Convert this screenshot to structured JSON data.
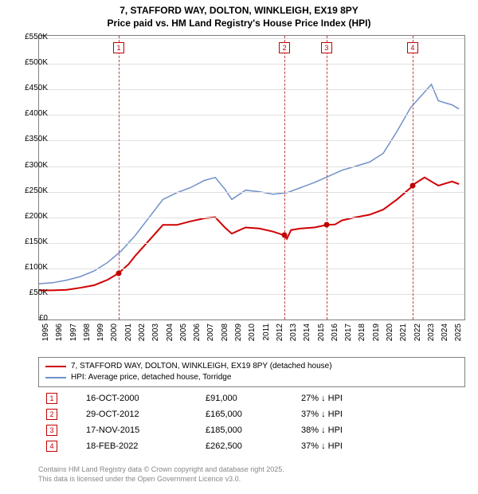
{
  "title_line1": "7, STAFFORD WAY, DOLTON, WINKLEIGH, EX19 8PY",
  "title_line2": "Price paid vs. HM Land Registry's House Price Index (HPI)",
  "chart": {
    "type": "line",
    "background_color": "#ffffff",
    "grid_color": "#e0e0e0",
    "border_color": "#808080",
    "ylim": [
      0,
      555000
    ],
    "ytick_step": 50000,
    "ytick_labels": [
      "£0",
      "£50K",
      "£100K",
      "£150K",
      "£200K",
      "£250K",
      "£300K",
      "£350K",
      "£400K",
      "£450K",
      "£500K",
      "£550K"
    ],
    "xlim": [
      1995,
      2025.9
    ],
    "xtick_step": 1,
    "xtick_labels": [
      "1995",
      "1996",
      "1997",
      "1998",
      "1999",
      "2000",
      "2001",
      "2002",
      "2003",
      "2004",
      "2005",
      "2006",
      "2007",
      "2008",
      "2009",
      "2010",
      "2011",
      "2012",
      "2013",
      "2014",
      "2015",
      "2016",
      "2017",
      "2018",
      "2019",
      "2020",
      "2021",
      "2022",
      "2023",
      "2024",
      "2025"
    ],
    "series": [
      {
        "name": "price_paid",
        "label": "7, STAFFORD WAY, DOLTON, WINKLEIGH, EX19 8PY (detached house)",
        "color": "#d00000",
        "line_width": 2,
        "points": [
          [
            1995.0,
            57000
          ],
          [
            1996.0,
            57000
          ],
          [
            1997.0,
            58000
          ],
          [
            1998.0,
            62000
          ],
          [
            1999.0,
            67000
          ],
          [
            2000.0,
            78000
          ],
          [
            2000.8,
            91000
          ],
          [
            2001.5,
            108000
          ],
          [
            2002.0,
            125000
          ],
          [
            2003.0,
            155000
          ],
          [
            2004.0,
            185000
          ],
          [
            2005.0,
            185000
          ],
          [
            2006.0,
            192000
          ],
          [
            2007.0,
            198000
          ],
          [
            2007.8,
            200000
          ],
          [
            2008.5,
            180000
          ],
          [
            2009.0,
            168000
          ],
          [
            2010.0,
            180000
          ],
          [
            2011.0,
            178000
          ],
          [
            2012.0,
            172000
          ],
          [
            2012.8,
            165000
          ],
          [
            2013.0,
            158000
          ],
          [
            2013.3,
            175000
          ],
          [
            2014.0,
            178000
          ],
          [
            2015.0,
            180000
          ],
          [
            2015.9,
            185000
          ],
          [
            2016.5,
            186000
          ],
          [
            2017.0,
            194000
          ],
          [
            2018.0,
            200000
          ],
          [
            2019.0,
            205000
          ],
          [
            2020.0,
            215000
          ],
          [
            2021.0,
            235000
          ],
          [
            2022.0,
            258000
          ],
          [
            2022.1,
            262500
          ],
          [
            2023.0,
            278000
          ],
          [
            2023.5,
            270000
          ],
          [
            2024.0,
            262000
          ],
          [
            2025.0,
            270000
          ],
          [
            2025.5,
            265000
          ]
        ]
      },
      {
        "name": "hpi",
        "label": "HPI: Average price, detached house, Torridge",
        "color": "#7090c8",
        "line_width": 1.5,
        "points": [
          [
            1995.0,
            70000
          ],
          [
            1996.0,
            72000
          ],
          [
            1997.0,
            77000
          ],
          [
            1998.0,
            84000
          ],
          [
            1999.0,
            95000
          ],
          [
            2000.0,
            112000
          ],
          [
            2001.0,
            135000
          ],
          [
            2002.0,
            165000
          ],
          [
            2003.0,
            200000
          ],
          [
            2004.0,
            235000
          ],
          [
            2005.0,
            248000
          ],
          [
            2006.0,
            258000
          ],
          [
            2007.0,
            272000
          ],
          [
            2007.8,
            278000
          ],
          [
            2008.5,
            255000
          ],
          [
            2009.0,
            235000
          ],
          [
            2010.0,
            253000
          ],
          [
            2011.0,
            250000
          ],
          [
            2012.0,
            245000
          ],
          [
            2013.0,
            248000
          ],
          [
            2014.0,
            258000
          ],
          [
            2015.0,
            268000
          ],
          [
            2016.0,
            280000
          ],
          [
            2017.0,
            292000
          ],
          [
            2018.0,
            300000
          ],
          [
            2019.0,
            308000
          ],
          [
            2020.0,
            325000
          ],
          [
            2021.0,
            368000
          ],
          [
            2022.0,
            415000
          ],
          [
            2023.0,
            445000
          ],
          [
            2023.5,
            460000
          ],
          [
            2024.0,
            428000
          ],
          [
            2025.0,
            420000
          ],
          [
            2025.5,
            412000
          ]
        ]
      }
    ],
    "markers": [
      {
        "n": "1",
        "x": 2000.79,
        "y": 91000
      },
      {
        "n": "2",
        "x": 2012.83,
        "y": 165000
      },
      {
        "n": "3",
        "x": 2015.88,
        "y": 185000
      },
      {
        "n": "4",
        "x": 2022.13,
        "y": 262500
      }
    ],
    "marker_color": "#c00000",
    "marker_line_color": "#c04040"
  },
  "legend": {
    "border_color": "#808080",
    "fontsize": 10
  },
  "sales": [
    {
      "n": "1",
      "date": "16-OCT-2000",
      "price": "£91,000",
      "pct": "27% ↓ HPI"
    },
    {
      "n": "2",
      "date": "29-OCT-2012",
      "price": "£165,000",
      "pct": "37% ↓ HPI"
    },
    {
      "n": "3",
      "date": "17-NOV-2015",
      "price": "£185,000",
      "pct": "38% ↓ HPI"
    },
    {
      "n": "4",
      "date": "18-FEB-2022",
      "price": "£262,500",
      "pct": "37% ↓ HPI"
    }
  ],
  "footer_line1": "Contains HM Land Registry data © Crown copyright and database right 2025.",
  "footer_line2": "This data is licensed under the Open Government Licence v3.0."
}
